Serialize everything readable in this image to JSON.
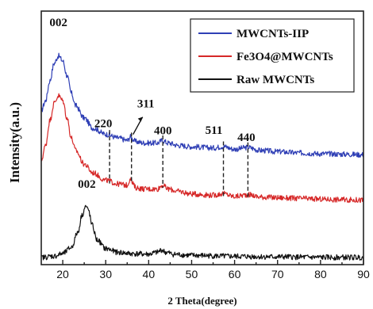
{
  "chart_data": {
    "type": "line",
    "title": "",
    "xlabel": "2 Theta(degree)",
    "ylabel": "Intensity(a.u.)",
    "xlim": [
      15,
      90
    ],
    "xticks": [
      20,
      30,
      40,
      50,
      60,
      70,
      80,
      90
    ],
    "ylim": [
      0,
      100
    ],
    "yticks_shown": false,
    "grid": false,
    "legend_position": "top-right",
    "series": [
      {
        "name": "MWCNTs-IIP",
        "color": "#2f3fb5",
        "x": [
          15,
          16,
          17,
          18,
          19,
          20,
          21,
          22,
          23,
          25,
          27,
          30,
          33,
          35,
          35.8,
          36.3,
          37,
          39,
          42,
          43.2,
          44.5,
          47,
          50,
          55,
          57.3,
          60,
          63.1,
          66,
          70,
          75,
          80,
          85,
          90
        ],
        "y": [
          60,
          64,
          72,
          79,
          82,
          80,
          74,
          67,
          62,
          57,
          53,
          50.5,
          49,
          48,
          49.5,
          48.5,
          47.5,
          47,
          47,
          48,
          47,
          46,
          45.5,
          45,
          45.6,
          44.5,
          45.2,
          44,
          43.5,
          43,
          42.7,
          42.5,
          42.3
        ]
      },
      {
        "name": "Fe3O4@MWCNTs",
        "color": "#d62828",
        "x": [
          15,
          16,
          17,
          18,
          19,
          20,
          21,
          22,
          23,
          25,
          27,
          30,
          33,
          35,
          35.8,
          36.3,
          37,
          39,
          42,
          43.2,
          44.5,
          47,
          50,
          55,
          57.3,
          60,
          63.1,
          66,
          70,
          75,
          80,
          85,
          90
        ],
        "y": [
          40,
          46,
          56,
          63,
          66,
          64,
          57,
          49,
          44,
          38.5,
          35,
          32,
          30.5,
          30,
          33,
          30.5,
          29,
          28.5,
          28.5,
          30,
          28.5,
          27.5,
          26.5,
          26,
          26.6,
          25.5,
          26.2,
          25.3,
          25,
          24.7,
          24.4,
          24.2,
          24
        ]
      },
      {
        "name": "Raw MWCNTs",
        "color": "#111111",
        "x": [
          15,
          18,
          20,
          22,
          23.5,
          24.5,
          25.3,
          26,
          26.8,
          28,
          30,
          33,
          36,
          40,
          42,
          43,
          44,
          46,
          50,
          60,
          70,
          80,
          90
        ],
        "y": [
          1,
          1.5,
          2.5,
          5,
          11,
          18,
          21.5,
          20,
          14,
          8,
          4.5,
          3,
          2.5,
          2.3,
          3,
          4,
          3,
          2.2,
          1.8,
          1.4,
          1.2,
          1,
          1
        ]
      }
    ],
    "peak_markers": [
      {
        "label": "220",
        "x": 30.9
      },
      {
        "label": "311",
        "x": 36.0
      },
      {
        "label": "400",
        "x": 43.3
      },
      {
        "label": "511",
        "x": 57.4
      },
      {
        "label": "440",
        "x": 63.1
      }
    ],
    "annotations": [
      {
        "label": "002",
        "x": 19.0,
        "y": 94
      },
      {
        "label": "002",
        "x": 25.6,
        "y": 29
      }
    ]
  }
}
